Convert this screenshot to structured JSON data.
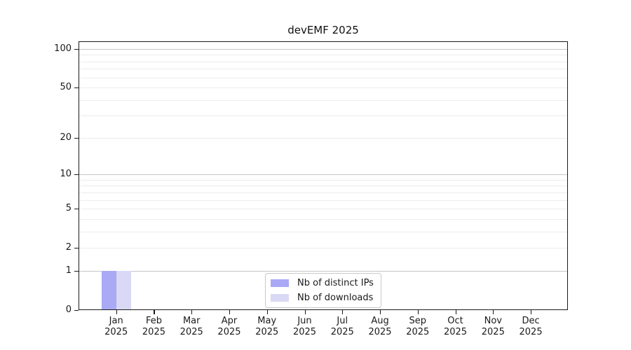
{
  "title": "devEMF 2025",
  "chart_data": {
    "type": "bar",
    "title": "devEMF 2025",
    "categories": [
      "Jan",
      "Feb",
      "Mar",
      "Apr",
      "May",
      "Jun",
      "Jul",
      "Aug",
      "Sep",
      "Oct",
      "Nov",
      "Dec"
    ],
    "category_year": "2025",
    "series": [
      {
        "name": "Nb of distinct IPs",
        "color": "#a9a9f5",
        "values": [
          1,
          0,
          0,
          0,
          0,
          0,
          0,
          0,
          0,
          0,
          0,
          0
        ]
      },
      {
        "name": "Nb of downloads",
        "color": "#d9d9f5",
        "values": [
          1,
          0,
          0,
          0,
          0,
          0,
          0,
          0,
          0,
          0,
          0,
          0
        ]
      }
    ],
    "xlabel": "",
    "ylabel": "",
    "yscale": "log1p",
    "ylim": [
      0,
      115
    ],
    "ytick_values": [
      0,
      1,
      2,
      5,
      10,
      20,
      50,
      100
    ],
    "ytick_labels": [
      "0",
      "1",
      "2",
      "5",
      "10",
      "20",
      "50",
      "100"
    ],
    "major_grid_values": [
      1,
      10,
      100
    ],
    "minor_grid_values": [
      2,
      3,
      4,
      5,
      6,
      7,
      8,
      9,
      20,
      30,
      40,
      50,
      60,
      70,
      80,
      90
    ],
    "grid": true,
    "legend_position": "bottom-center",
    "colors": {
      "grid_major": "#c6c6c6",
      "grid_minor": "#ececec",
      "axis": "#1a1a1a",
      "background": "#ffffff"
    }
  }
}
